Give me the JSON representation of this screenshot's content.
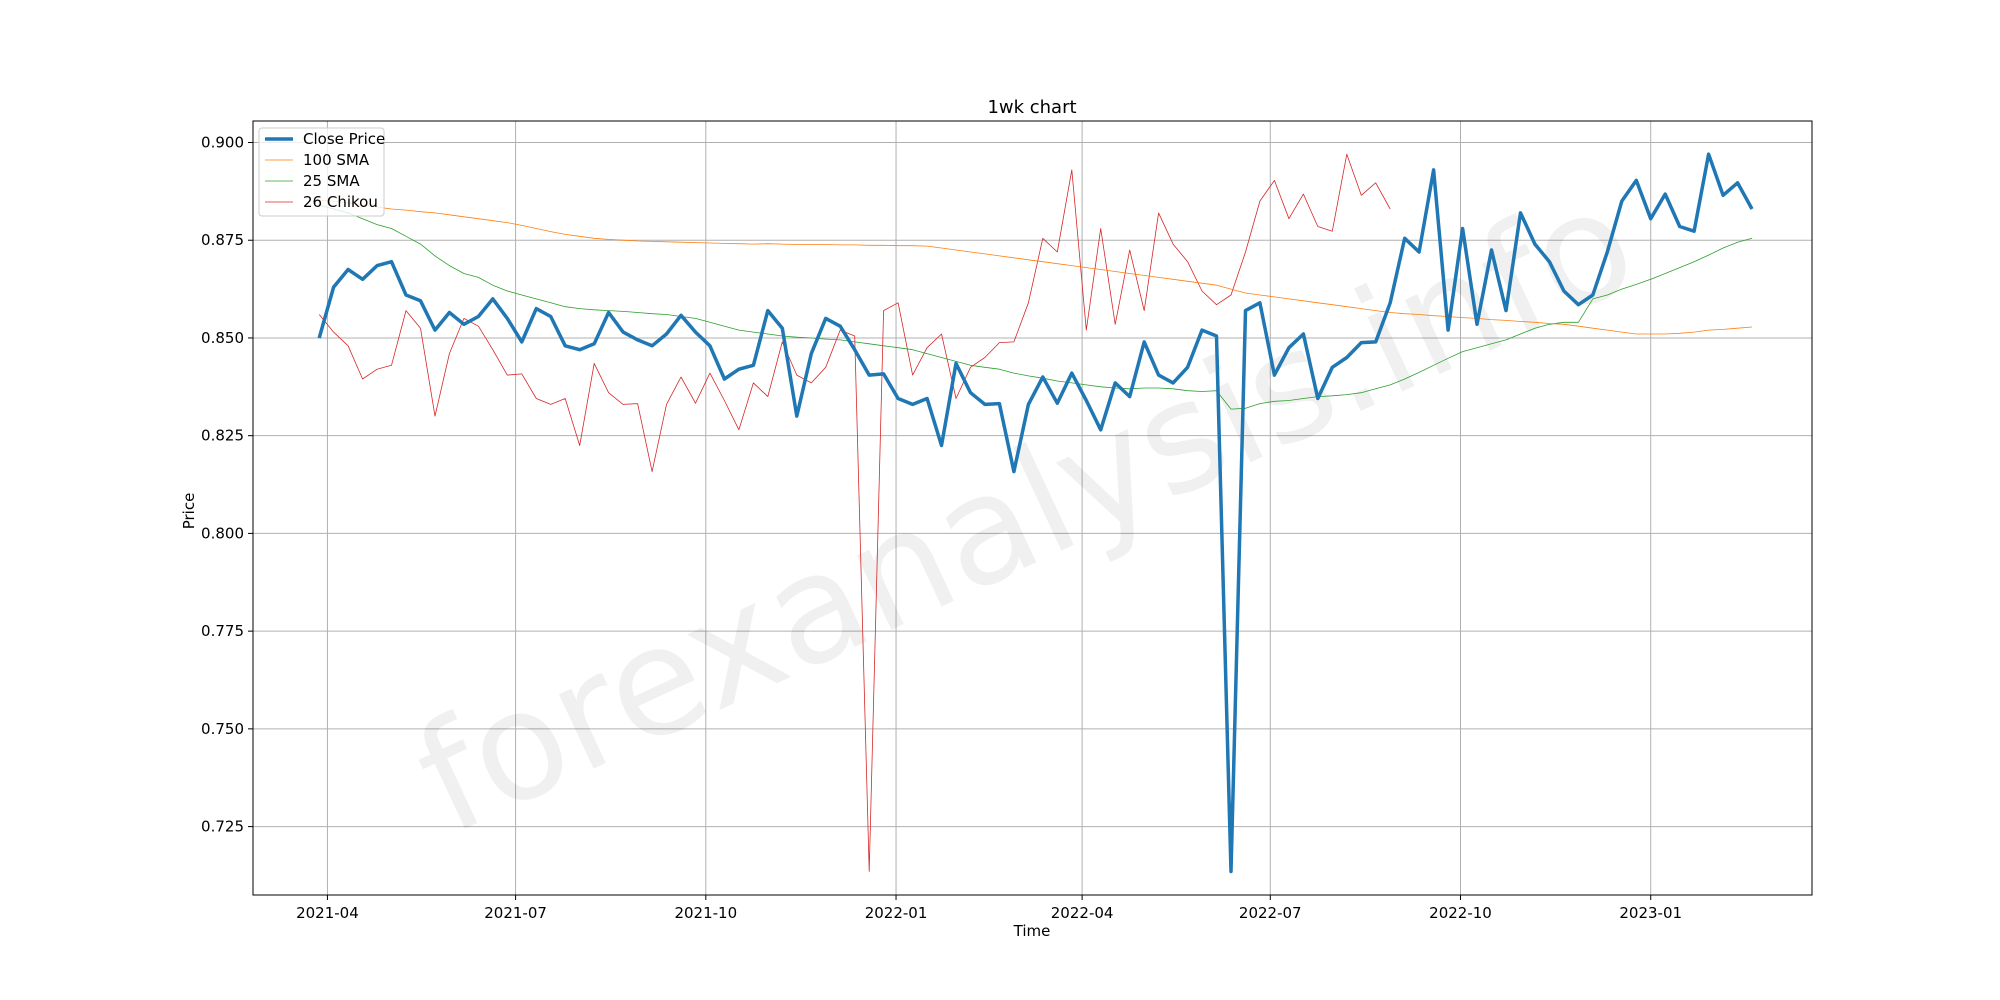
{
  "chart_data": {
    "type": "line",
    "title": "1wk chart",
    "xlabel": "Time",
    "ylabel": "Price",
    "watermark": "forexanalysis.info",
    "ylim": [
      0.7075,
      0.9055
    ],
    "xlim": [
      "2021-02-24",
      "2023-03-20"
    ],
    "yticks": [
      0.725,
      0.75,
      0.775,
      0.8,
      0.825,
      0.85,
      0.875,
      0.9
    ],
    "ytick_labels": [
      "0.725",
      "0.750",
      "0.775",
      "0.800",
      "0.825",
      "0.850",
      "0.875",
      "0.900"
    ],
    "xticks": [
      "2021-04-01",
      "2021-07-01",
      "2021-10-01",
      "2022-01-01",
      "2022-04-01",
      "2022-07-01",
      "2022-10-01",
      "2023-01-01"
    ],
    "xtick_labels": [
      "2021-04",
      "2021-07",
      "2021-10",
      "2022-01",
      "2022-04",
      "2022-07",
      "2022-10",
      "2023-01"
    ],
    "grid": true,
    "legend_position": "top-left",
    "series": [
      {
        "name": "Close Price",
        "color": "#1f77b4",
        "start": "2021-03-28",
        "step_days": 7,
        "values": [
          0.85,
          0.863,
          0.8675,
          0.865,
          0.8685,
          0.8695,
          0.861,
          0.8595,
          0.852,
          0.8565,
          0.8535,
          0.8555,
          0.86,
          0.855,
          0.849,
          0.8575,
          0.8555,
          0.848,
          0.847,
          0.8485,
          0.8565,
          0.8515,
          0.8495,
          0.848,
          0.851,
          0.8558,
          0.8515,
          0.848,
          0.8395,
          0.842,
          0.843,
          0.857,
          0.8525,
          0.83,
          0.846,
          0.855,
          0.853,
          0.847,
          0.8405,
          0.8408,
          0.8345,
          0.833,
          0.8345,
          0.8225,
          0.8435,
          0.836,
          0.833,
          0.8332,
          0.8158,
          0.833,
          0.84,
          0.8333,
          0.841,
          0.834,
          0.8265,
          0.8385,
          0.835,
          0.849,
          0.8405,
          0.8385,
          0.8425,
          0.852,
          0.8505,
          0.7135,
          0.857,
          0.859,
          0.8405,
          0.8475,
          0.851,
          0.8345,
          0.8425,
          0.845,
          0.8488,
          0.849,
          0.859,
          0.8755,
          0.872,
          0.893,
          0.852,
          0.878,
          0.8535,
          0.8725,
          0.857,
          0.882,
          0.874,
          0.8695,
          0.862,
          0.8585,
          0.861,
          0.872,
          0.885,
          0.8903,
          0.8805,
          0.8868,
          0.8785,
          0.8773,
          0.897,
          0.8865,
          0.8897,
          0.883
        ]
      },
      {
        "name": "100 SMA",
        "color": "#ff7f0e",
        "start": "2021-03-28",
        "step_days": 7,
        "values": [
          0.8852,
          0.885,
          0.8845,
          0.884,
          0.8835,
          0.883,
          0.8827,
          0.8823,
          0.882,
          0.8815,
          0.881,
          0.8805,
          0.88,
          0.8795,
          0.8788,
          0.878,
          0.8772,
          0.8765,
          0.876,
          0.8755,
          0.8752,
          0.875,
          0.8748,
          0.8747,
          0.8746,
          0.8745,
          0.8744,
          0.8743,
          0.8742,
          0.8741,
          0.874,
          0.8741,
          0.874,
          0.8739,
          0.8739,
          0.8739,
          0.8738,
          0.8738,
          0.8737,
          0.8737,
          0.8736,
          0.8736,
          0.8735,
          0.873,
          0.8725,
          0.872,
          0.8715,
          0.871,
          0.8705,
          0.87,
          0.8695,
          0.869,
          0.8685,
          0.868,
          0.8675,
          0.867,
          0.8665,
          0.866,
          0.8655,
          0.865,
          0.8645,
          0.864,
          0.8635,
          0.8625,
          0.8615,
          0.861,
          0.8605,
          0.86,
          0.8595,
          0.859,
          0.8585,
          0.858,
          0.8575,
          0.857,
          0.8565,
          0.8562,
          0.856,
          0.8557,
          0.8555,
          0.8552,
          0.855,
          0.8547,
          0.8545,
          0.8542,
          0.854,
          0.8537,
          0.8535,
          0.853,
          0.8525,
          0.852,
          0.8515,
          0.851,
          0.851,
          0.851,
          0.8512,
          0.8515,
          0.852,
          0.8522,
          0.8525,
          0.8528
        ]
      },
      {
        "name": "25 SMA",
        "color": "#2ca02c",
        "start": "2021-03-28",
        "step_days": 7,
        "values": [
          0.884,
          0.883,
          0.882,
          0.8805,
          0.879,
          0.878,
          0.876,
          0.874,
          0.871,
          0.8685,
          0.8665,
          0.8655,
          0.8635,
          0.862,
          0.861,
          0.86,
          0.859,
          0.858,
          0.8575,
          0.8572,
          0.857,
          0.8568,
          0.8565,
          0.8562,
          0.856,
          0.8555,
          0.855,
          0.854,
          0.853,
          0.852,
          0.8515,
          0.851,
          0.8505,
          0.8502,
          0.85,
          0.8497,
          0.8495,
          0.849,
          0.8485,
          0.848,
          0.8475,
          0.847,
          0.846,
          0.845,
          0.844,
          0.843,
          0.8425,
          0.842,
          0.841,
          0.8403,
          0.8397,
          0.839,
          0.8385,
          0.838,
          0.8375,
          0.8372,
          0.837,
          0.8372,
          0.8372,
          0.837,
          0.8365,
          0.8363,
          0.8365,
          0.8318,
          0.832,
          0.8332,
          0.8338,
          0.834,
          0.8345,
          0.835,
          0.8352,
          0.8355,
          0.836,
          0.837,
          0.838,
          0.8395,
          0.8412,
          0.843,
          0.8448,
          0.8465,
          0.8475,
          0.8485,
          0.8495,
          0.851,
          0.8525,
          0.8535,
          0.854,
          0.854,
          0.86,
          0.861,
          0.8625,
          0.8637,
          0.865,
          0.8665,
          0.868,
          0.8695,
          0.8712,
          0.873,
          0.8745,
          0.8755
        ]
      },
      {
        "name": "26 Chikou",
        "color": "#d62728",
        "start": "2021-03-28",
        "step_days": 7,
        "values": [
          0.856,
          0.8515,
          0.848,
          0.8395,
          0.842,
          0.843,
          0.857,
          0.8525,
          0.83,
          0.846,
          0.855,
          0.853,
          0.847,
          0.8405,
          0.8408,
          0.8345,
          0.833,
          0.8345,
          0.8225,
          0.8435,
          0.836,
          0.833,
          0.8332,
          0.8158,
          0.833,
          0.84,
          0.8333,
          0.841,
          0.834,
          0.8265,
          0.8385,
          0.835,
          0.849,
          0.8405,
          0.8385,
          0.8425,
          0.852,
          0.8505,
          0.7135,
          0.857,
          0.859,
          0.8405,
          0.8475,
          0.851,
          0.8345,
          0.8425,
          0.845,
          0.8488,
          0.849,
          0.859,
          0.8755,
          0.872,
          0.893,
          0.852,
          0.878,
          0.8535,
          0.8725,
          0.857,
          0.882,
          0.874,
          0.8695,
          0.862,
          0.8585,
          0.861,
          0.872,
          0.885,
          0.8903,
          0.8805,
          0.8868,
          0.8785,
          0.8773,
          0.897,
          0.8865,
          0.8897,
          0.883
        ]
      }
    ]
  }
}
